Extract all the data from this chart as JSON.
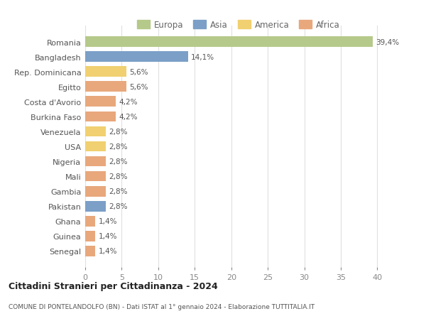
{
  "countries": [
    "Romania",
    "Bangladesh",
    "Rep. Dominicana",
    "Egitto",
    "Costa d'Avorio",
    "Burkina Faso",
    "Venezuela",
    "USA",
    "Nigeria",
    "Mali",
    "Gambia",
    "Pakistan",
    "Ghana",
    "Guinea",
    "Senegal"
  ],
  "values": [
    39.4,
    14.1,
    5.6,
    5.6,
    4.2,
    4.2,
    2.8,
    2.8,
    2.8,
    2.8,
    2.8,
    2.8,
    1.4,
    1.4,
    1.4
  ],
  "labels": [
    "39,4%",
    "14,1%",
    "5,6%",
    "5,6%",
    "4,2%",
    "4,2%",
    "2,8%",
    "2,8%",
    "2,8%",
    "2,8%",
    "2,8%",
    "2,8%",
    "1,4%",
    "1,4%",
    "1,4%"
  ],
  "continents": [
    "Europa",
    "Asia",
    "America",
    "Africa",
    "Africa",
    "Africa",
    "America",
    "America",
    "Africa",
    "Africa",
    "Africa",
    "Asia",
    "Africa",
    "Africa",
    "Africa"
  ],
  "colors": {
    "Europa": "#b5c98a",
    "Asia": "#7b9fc7",
    "America": "#f0d070",
    "Africa": "#e8a87c"
  },
  "legend_order": [
    "Europa",
    "Asia",
    "America",
    "Africa"
  ],
  "title": "Cittadini Stranieri per Cittadinanza - 2024",
  "subtitle": "COMUNE DI PONTELANDOLFO (BN) - Dati ISTAT al 1° gennaio 2024 - Elaborazione TUTTITALIA.IT",
  "xlim": [
    0,
    42
  ],
  "xticks": [
    0,
    5,
    10,
    15,
    20,
    25,
    30,
    35,
    40
  ],
  "background_color": "#ffffff",
  "grid_color": "#e0e0e0"
}
